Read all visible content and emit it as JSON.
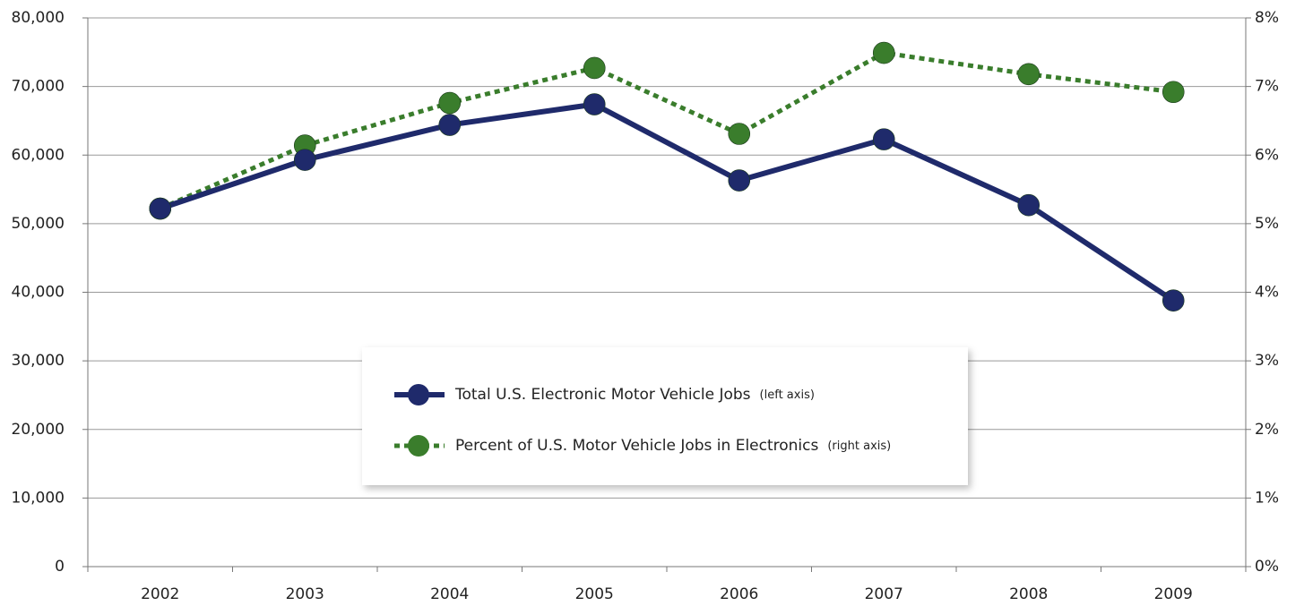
{
  "chart_data": {
    "type": "line",
    "categories": [
      "2002",
      "2003",
      "2004",
      "2005",
      "2006",
      "2007",
      "2008",
      "2009"
    ],
    "series": [
      {
        "name": "Total U.S. Electronic Motor Vehicle Jobs",
        "axis_note": "(left axis)",
        "color": "#1f2a6b",
        "axis": "y",
        "values": [
          52200,
          59300,
          64400,
          67400,
          56300,
          62300,
          52700,
          38800
        ]
      },
      {
        "name": "Percent of U.S. Motor Vehicle Jobs in Electronics",
        "axis_note": "(right axis)",
        "color": "#3a7d2c",
        "axis": "y2",
        "values": [
          5.22,
          6.14,
          6.76,
          7.27,
          6.31,
          7.49,
          7.18,
          6.92
        ]
      }
    ],
    "ylim": [
      0,
      80000
    ],
    "yticks": [
      0,
      {
        "value": 10000,
        "label": "10,000"
      },
      {
        "value": 20000,
        "label": "20,000"
      },
      {
        "value": 30000,
        "label": "30,000"
      },
      {
        "value": 40000,
        "label": "40,000"
      },
      {
        "value": 50000,
        "label": "50,000"
      },
      {
        "value": 60000,
        "label": "60,000"
      },
      {
        "value": 70000,
        "label": "70,000"
      },
      {
        "value": 80000,
        "label": "80,000"
      }
    ],
    "y2lim": [
      0,
      8
    ],
    "y2ticks": [
      {
        "value": 0,
        "label": "0%"
      },
      {
        "value": 1,
        "label": "1%"
      },
      {
        "value": 2,
        "label": "2%"
      },
      {
        "value": 3,
        "label": "3%"
      },
      {
        "value": 4,
        "label": "4%"
      },
      {
        "value": 5,
        "label": "5%"
      },
      {
        "value": 6,
        "label": "6%"
      },
      {
        "value": 7,
        "label": "7%"
      },
      {
        "value": 8,
        "label": "8%"
      }
    ],
    "grid": true,
    "legend": "center"
  }
}
